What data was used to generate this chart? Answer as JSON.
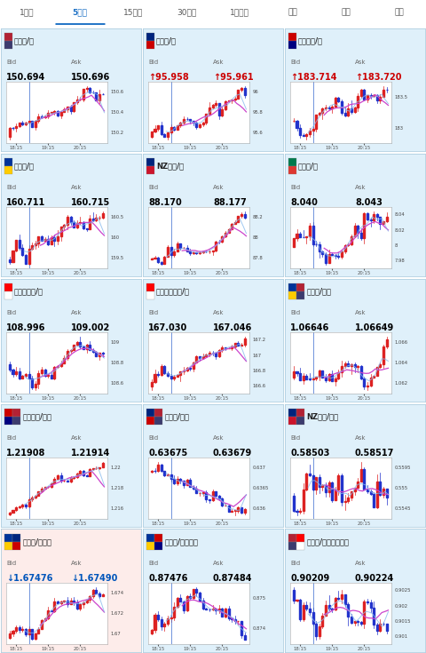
{
  "tab_items": [
    "1分足",
    "5分足",
    "15分足",
    "30分足",
    "1時間足",
    "日足",
    "週足",
    "月足"
  ],
  "active_tab": "5分足",
  "active_tab_color": "#1a6fc4",
  "inactive_tab_color": "#555555",
  "panel_bg": "#dff0fa",
  "highlight_bg": "#fdecea",
  "border_color": "#b0cfe0",
  "chart_bg": "#ffffff",
  "pairs": [
    {
      "flag": "US",
      "flag2": null,
      "name": "米ドル/円",
      "bid": "150.694",
      "ask": "150.696",
      "bid_arrow": "",
      "ask_arrow": "",
      "bid_color": "#000000",
      "ask_color": "#000000",
      "yrange": [
        150.1,
        150.7
      ],
      "ytick_labels": [
        "150.6",
        "150.4",
        "150.2"
      ],
      "trend": "up",
      "col": 0,
      "row": 0
    },
    {
      "flag": "AU",
      "flag2": null,
      "name": "豪ドル/円",
      "bid": "95.958",
      "ask": "95.961",
      "bid_arrow": "↑",
      "ask_arrow": "↑",
      "bid_color": "#cc0000",
      "ask_color": "#cc0000",
      "yrange": [
        95.5,
        96.1
      ],
      "ytick_labels": [
        "96",
        "95.8",
        "95.6"
      ],
      "trend": "up",
      "col": 1,
      "row": 0
    },
    {
      "flag": "GB",
      "flag2": null,
      "name": "英ポンド/円",
      "bid": "183.714",
      "ask": "183.720",
      "bid_arrow": "↑",
      "ask_arrow": "↑",
      "bid_color": "#cc0000",
      "ask_color": "#cc0000",
      "yrange": [
        182.7,
        183.8
      ],
      "ytick_labels": [
        "183.5",
        "183"
      ],
      "trend": "up",
      "col": 2,
      "row": 0
    },
    {
      "flag": "EU",
      "flag2": null,
      "name": "ユーロ/円",
      "bid": "160.711",
      "ask": "160.715",
      "bid_arrow": "",
      "ask_arrow": "",
      "bid_color": "#000000",
      "ask_color": "#000000",
      "yrange": [
        159.3,
        160.7
      ],
      "ytick_labels": [
        "160.5",
        "160",
        "159.5"
      ],
      "trend": "up",
      "col": 0,
      "row": 1
    },
    {
      "flag": "NZ",
      "flag2": null,
      "name": "NZドル/円",
      "bid": "88.170",
      "ask": "88.177",
      "bid_arrow": "",
      "ask_arrow": "",
      "bid_color": "#000000",
      "ask_color": "#000000",
      "yrange": [
        87.7,
        88.3
      ],
      "ytick_labels": [
        "88.2",
        "88",
        "87.8"
      ],
      "trend": "up",
      "col": 1,
      "row": 1
    },
    {
      "flag": "ZA",
      "flag2": null,
      "name": "ランド/円",
      "bid": "8.040",
      "ask": "8.043",
      "bid_arrow": "",
      "ask_arrow": "",
      "bid_color": "#000000",
      "ask_color": "#000000",
      "yrange": [
        7.94,
        8.06
      ],
      "ytick_labels": [
        "8.04",
        "8.02",
        "8",
        "7.98"
      ],
      "trend": "up",
      "col": 2,
      "row": 1
    },
    {
      "flag": "CA",
      "flag2": null,
      "name": "カナダドル/円",
      "bid": "108.996",
      "ask": "109.002",
      "bid_arrow": "",
      "ask_arrow": "",
      "bid_color": "#000000",
      "ask_color": "#000000",
      "yrange": [
        108.4,
        109.1
      ],
      "ytick_labels": [
        "109",
        "108.8",
        "108.6"
      ],
      "trend": "up",
      "col": 0,
      "row": 2
    },
    {
      "flag": "CH",
      "flag2": null,
      "name": "スイスフラン/円",
      "bid": "167.030",
      "ask": "167.046",
      "bid_arrow": "",
      "ask_arrow": "",
      "bid_color": "#000000",
      "ask_color": "#000000",
      "yrange": [
        166.4,
        167.4
      ],
      "ytick_labels": [
        "167.2",
        "167",
        "166.8",
        "166.6"
      ],
      "trend": "up",
      "col": 1,
      "row": 2
    },
    {
      "flag": "EU",
      "flag2": "US",
      "name": "ユーロ/ドル",
      "bid": "1.06646",
      "ask": "1.06649",
      "bid_arrow": "",
      "ask_arrow": "",
      "bid_color": "#000000",
      "ask_color": "#000000",
      "yrange": [
        1.061,
        1.067
      ],
      "ytick_labels": [
        "1.066",
        "1.064",
        "1.062"
      ],
      "trend": "up",
      "col": 2,
      "row": 2
    },
    {
      "flag": "GB",
      "flag2": "US",
      "name": "英ポンド/ドル",
      "bid": "1.21908",
      "ask": "1.21914",
      "bid_arrow": "",
      "ask_arrow": "",
      "bid_color": "#000000",
      "ask_color": "#000000",
      "yrange": [
        1.2148,
        1.2208
      ],
      "ytick_labels": [
        "1.22",
        "1.218",
        "1.216"
      ],
      "trend": "up",
      "col": 0,
      "row": 3
    },
    {
      "flag": "AU",
      "flag2": "US",
      "name": "豪ドル/ドル",
      "bid": "0.63675",
      "ask": "0.63679",
      "bid_arrow": "",
      "ask_arrow": "",
      "bid_color": "#000000",
      "ask_color": "#000000",
      "yrange": [
        0.6353,
        0.6378
      ],
      "ytick_labels": [
        "0.637",
        "0.6365",
        "0.636"
      ],
      "trend": "down",
      "col": 1,
      "row": 3
    },
    {
      "flag": "NZ",
      "flag2": "US",
      "name": "NZドル/ドル",
      "bid": "0.58503",
      "ask": "0.58517",
      "bid_arrow": "",
      "ask_arrow": "",
      "bid_color": "#000000",
      "ask_color": "#000000",
      "yrange": [
        0.553,
        0.56
      ],
      "ytick_labels": [
        "0.5595",
        "0.555",
        "0.5545"
      ],
      "trend": "mixed",
      "col": 2,
      "row": 3
    },
    {
      "flag": "EU",
      "flag2": "AU",
      "name": "ユーロ/豪ドル",
      "bid": "1.67476",
      "ask": "1.67490",
      "bid_arrow": "↓",
      "ask_arrow": "↓",
      "bid_color": "#0055bb",
      "ask_color": "#0055bb",
      "yrange": [
        1.669,
        1.676
      ],
      "ytick_labels": [
        "1.674",
        "1.672",
        "1.67"
      ],
      "trend": "up",
      "col": 0,
      "row": 4,
      "highlight": true
    },
    {
      "flag": "EU",
      "flag2": "GB",
      "name": "ユーロ/英ポンド",
      "bid": "0.87476",
      "ask": "0.87484",
      "bid_arrow": "",
      "ask_arrow": "",
      "bid_color": "#000000",
      "ask_color": "#000000",
      "yrange": [
        0.8728,
        0.876
      ],
      "ytick_labels": [
        "0.875",
        "0.874"
      ],
      "trend": "mixed",
      "col": 1,
      "row": 4
    },
    {
      "flag": "US",
      "flag2": "CH",
      "name": "米ドル/スイスフラン",
      "bid": "0.90209",
      "ask": "0.90224",
      "bid_arrow": "",
      "ask_arrow": "",
      "bid_color": "#000000",
      "ask_color": "#000000",
      "yrange": [
        0.9003,
        0.903
      ],
      "ytick_labels": [
        "0.9025",
        "0.902",
        "0.9015",
        "0.901"
      ],
      "trend": "mixed",
      "col": 2,
      "row": 4
    }
  ],
  "xtick_labels": [
    "18:15",
    "19:15",
    "20:15"
  ],
  "bg_color": "#ffffff"
}
